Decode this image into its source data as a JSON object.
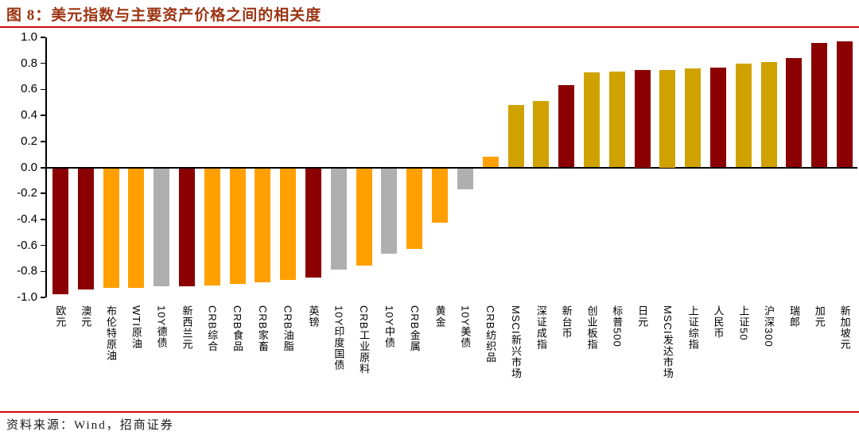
{
  "header": {
    "title": "图 8：美元指数与主要资产价格之间的相关度"
  },
  "footer": {
    "source": "资料来源：Wind，招商证券"
  },
  "colors": {
    "title_text": "#9C3412",
    "rule_red": "#D40A0A",
    "axis_black": "#000000",
    "bar_currency": "#8B0000",
    "bar_commodity": "#FFA000",
    "bar_bond": "#AFAFAF",
    "bar_equity": "#D0A200"
  },
  "chart_data": {
    "type": "bar",
    "title": "美元指数与主要资产价格之间的相关度",
    "xlabel": "",
    "ylabel": "",
    "ylim": [
      -1.0,
      1.0
    ],
    "ytick_step": 0.2,
    "yticks": [
      "1.0",
      "0.8",
      "0.6",
      "0.4",
      "0.2",
      "0.0",
      "-0.2",
      "-0.4",
      "-0.6",
      "-0.8",
      "-1.0"
    ],
    "grid": false,
    "legend": "none",
    "categories": [
      "欧元",
      "澳元",
      "布伦特原油",
      "WTI原油",
      "10Y德债",
      "新西兰元",
      "CRB综合",
      "CRB食品",
      "CRB家畜",
      "CRB油脂",
      "英镑",
      "10Y印度国债",
      "CRB工业原料",
      "10Y中债",
      "CRB金属",
      "黄金",
      "10Y美债",
      "CRB纺织品",
      "MSCI新兴市场",
      "深证成指",
      "新台币",
      "创业板指",
      "标普500",
      "日元",
      "MSCI发达市场",
      "上证综指",
      "人民币",
      "上证50",
      "沪深300",
      "瑞郎",
      "加元",
      "新加坡元"
    ],
    "values": [
      -0.97,
      -0.93,
      -0.92,
      -0.92,
      -0.91,
      -0.91,
      -0.9,
      -0.89,
      -0.88,
      -0.86,
      -0.84,
      -0.78,
      -0.75,
      -0.66,
      -0.62,
      -0.42,
      -0.16,
      0.08,
      0.48,
      0.51,
      0.63,
      0.73,
      0.74,
      0.75,
      0.75,
      0.76,
      0.77,
      0.8,
      0.81,
      0.84,
      0.96,
      0.97
    ],
    "groups": [
      "currency",
      "currency",
      "commodity",
      "commodity",
      "bond",
      "currency",
      "commodity",
      "commodity",
      "commodity",
      "commodity",
      "currency",
      "bond",
      "commodity",
      "bond",
      "commodity",
      "commodity",
      "bond",
      "commodity",
      "equity",
      "equity",
      "currency",
      "equity",
      "equity",
      "currency",
      "equity",
      "equity",
      "currency",
      "equity",
      "equity",
      "currency",
      "currency",
      "currency"
    ]
  }
}
